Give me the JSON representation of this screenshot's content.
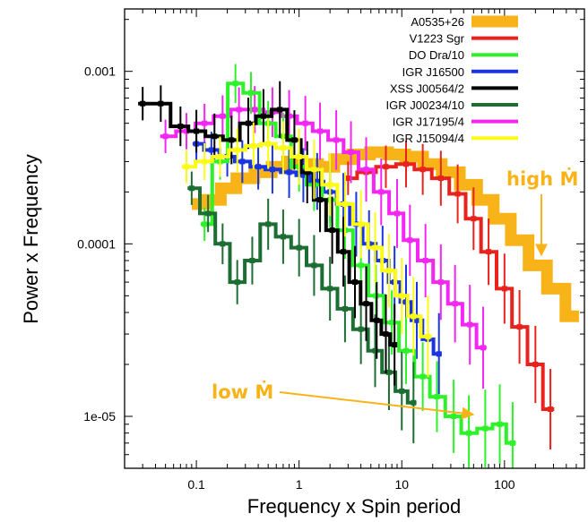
{
  "chart_data": {
    "type": "line",
    "xlabel": "Frequency x Spin period",
    "ylabel": "Power x Frequency",
    "xscale": "log",
    "yscale": "log",
    "xlim": [
      0.02,
      600
    ],
    "ylim": [
      5e-06,
      0.0023
    ],
    "xtick_labels": [
      "0.1",
      "1",
      "10",
      "100"
    ],
    "xtick_values": [
      0.1,
      1,
      10,
      100
    ],
    "ytick_labels": [
      "1e-05",
      "0.0001",
      "0.001"
    ],
    "ytick_values": [
      1e-05,
      0.0001,
      0.001
    ],
    "legend_position": "top-right",
    "series": [
      {
        "name": "A0535+26",
        "color": "#f7b318",
        "width": 13,
        "points": [
          [
            0.1,
            0.00017
          ],
          [
            0.15,
            0.00018
          ],
          [
            0.2,
            0.00021
          ],
          [
            0.3,
            0.00024
          ],
          [
            0.45,
            0.00026
          ],
          [
            0.65,
            0.00028
          ],
          [
            0.9,
            0.0003
          ],
          [
            1.3,
            0.00029
          ],
          [
            1.8,
            0.00028
          ],
          [
            2.7,
            0.00031
          ],
          [
            4,
            0.00033
          ],
          [
            6,
            0.00034
          ],
          [
            9,
            0.00033
          ],
          [
            13,
            0.00032
          ],
          [
            20,
            0.00029
          ],
          [
            30,
            0.00026
          ],
          [
            45,
            0.00022
          ],
          [
            65,
            0.00018
          ],
          [
            95,
            0.00014
          ],
          [
            140,
            0.000105
          ],
          [
            210,
            7.5e-05
          ],
          [
            320,
            5.5e-05
          ],
          [
            480,
            3.8e-05
          ]
        ]
      },
      {
        "name": "V1223 Sgr",
        "color": "#e8231d",
        "width": 4,
        "points": [
          [
            3,
            0.00024
          ],
          [
            4.5,
            0.00026
          ],
          [
            7,
            0.00028
          ],
          [
            11,
            0.00029
          ],
          [
            16,
            0.00027
          ],
          [
            24,
            0.00024
          ],
          [
            35,
            0.000195
          ],
          [
            50,
            0.00014
          ],
          [
            70,
            9e-05
          ],
          [
            100,
            5.5e-05
          ],
          [
            140,
            3.3e-05
          ],
          [
            200,
            2e-05
          ],
          [
            280,
            1.1e-05
          ]
        ]
      },
      {
        "name": "DO Dra/10",
        "color": "#2df22a",
        "width": 4,
        "points": [
          [
            0.12,
            0.00013
          ],
          [
            0.17,
            0.0003
          ],
          [
            0.24,
            0.00085
          ],
          [
            0.34,
            0.00075
          ],
          [
            0.5,
            0.0005
          ],
          [
            0.7,
            0.00042
          ],
          [
            1,
            0.00028
          ],
          [
            1.4,
            0.00022
          ],
          [
            2,
            0.00018
          ],
          [
            2.8,
            0.00012
          ],
          [
            4,
            7.5e-05
          ],
          [
            5.6,
            5e-05
          ],
          [
            8,
            3.5e-05
          ],
          [
            11,
            2.4e-05
          ],
          [
            16,
            1.7e-05
          ],
          [
            22,
            1.3e-05
          ],
          [
            32,
            1e-05
          ],
          [
            45,
            8e-06
          ],
          [
            65,
            8.5e-06
          ],
          [
            90,
            9e-06
          ],
          [
            120,
            7e-06
          ]
        ]
      },
      {
        "name": "IGR J16500",
        "color": "#1a35e0",
        "width": 4,
        "points": [
          [
            0.1,
            0.00038
          ],
          [
            0.14,
            0.00035
          ],
          [
            0.2,
            0.00032
          ],
          [
            0.28,
            0.0003
          ],
          [
            0.4,
            0.00028
          ],
          [
            0.55,
            0.00027
          ],
          [
            0.8,
            0.00026
          ],
          [
            1.1,
            0.00025
          ],
          [
            1.5,
            0.00023
          ],
          [
            2,
            0.0002
          ],
          [
            2.7,
            0.00017
          ],
          [
            3.6,
            0.00013
          ],
          [
            4.8,
            0.0001
          ],
          [
            6.5,
            8e-05
          ],
          [
            8.5,
            6e-05
          ],
          [
            11,
            4.6e-05
          ],
          [
            14,
            3.6e-05
          ],
          [
            18,
            2.8e-05
          ],
          [
            23,
            2.3e-05
          ]
        ]
      },
      {
        "name": "XSS J00564/2",
        "color": "#000000",
        "width": 4,
        "points": [
          [
            0.03,
            0.00065
          ],
          [
            0.045,
            0.00065
          ],
          [
            0.07,
            0.00048
          ],
          [
            0.1,
            0.00045
          ],
          [
            0.15,
            0.00042
          ],
          [
            0.22,
            0.0004
          ],
          [
            0.32,
            0.0005
          ],
          [
            0.45,
            0.00055
          ],
          [
            0.65,
            0.0006
          ],
          [
            0.9,
            0.0004
          ],
          [
            1.2,
            0.00026
          ],
          [
            1.6,
            0.00018
          ],
          [
            2.1,
            0.00012
          ],
          [
            2.7,
            9e-05
          ],
          [
            3.5,
            6e-05
          ],
          [
            4.5,
            4.5e-05
          ],
          [
            5.7,
            3.6e-05
          ],
          [
            7,
            3e-05
          ],
          [
            8.5,
            2.6e-05
          ]
        ]
      },
      {
        "name": "IGR J00234/10",
        "color": "#1c6e33",
        "width": 4,
        "points": [
          [
            0.09,
            0.00021
          ],
          [
            0.13,
            0.00015
          ],
          [
            0.18,
            0.0001
          ],
          [
            0.25,
            6e-05
          ],
          [
            0.35,
            8e-05
          ],
          [
            0.5,
            0.00013
          ],
          [
            0.7,
            0.00011
          ],
          [
            1,
            9.5e-05
          ],
          [
            1.4,
            7.5e-05
          ],
          [
            2,
            5.5e-05
          ],
          [
            2.8,
            4.2e-05
          ],
          [
            4,
            3.2e-05
          ],
          [
            5.5,
            2.4e-05
          ],
          [
            7.5,
            1.8e-05
          ],
          [
            10,
            1.4e-05
          ],
          [
            13,
            1.2e-05
          ]
        ]
      },
      {
        "name": "IGR J17195/4",
        "color": "#f227f2",
        "width": 4,
        "points": [
          [
            0.05,
            0.00042
          ],
          [
            0.08,
            0.00045
          ],
          [
            0.12,
            0.0005
          ],
          [
            0.18,
            0.00055
          ],
          [
            0.26,
            0.0006
          ],
          [
            0.37,
            0.0006
          ],
          [
            0.55,
            0.00058
          ],
          [
            0.8,
            0.00055
          ],
          [
            1.15,
            0.0005
          ],
          [
            1.6,
            0.00045
          ],
          [
            2.3,
            0.0004
          ],
          [
            3.2,
            0.00034
          ],
          [
            4.5,
            0.00027
          ],
          [
            6.3,
            0.0002
          ],
          [
            9,
            0.00015
          ],
          [
            12,
            0.000105
          ],
          [
            17,
            8e-05
          ],
          [
            24,
            6e-05
          ],
          [
            33,
            4.5e-05
          ],
          [
            46,
            3.4e-05
          ],
          [
            62,
            2.5e-05
          ]
        ]
      },
      {
        "name": "IGR J15094/4",
        "color": "#fbfb16",
        "width": 4,
        "points": [
          [
            0.08,
            0.00028
          ],
          [
            0.12,
            0.0003
          ],
          [
            0.17,
            0.00032
          ],
          [
            0.25,
            0.00035
          ],
          [
            0.36,
            0.00037
          ],
          [
            0.5,
            0.00038
          ],
          [
            0.7,
            0.00036
          ],
          [
            1,
            0.00032
          ],
          [
            1.4,
            0.00027
          ],
          [
            2,
            0.00022
          ],
          [
            2.8,
            0.00017
          ],
          [
            4,
            0.00013
          ],
          [
            5.5,
            9.5e-05
          ],
          [
            7.5,
            7e-05
          ],
          [
            10,
            5e-05
          ],
          [
            13,
            3.8e-05
          ],
          [
            18,
            2.9e-05
          ]
        ]
      }
    ],
    "annotations": {
      "high_label": "high Ṁ",
      "low_label": "low Ṁ",
      "color": "#f7b318"
    }
  }
}
